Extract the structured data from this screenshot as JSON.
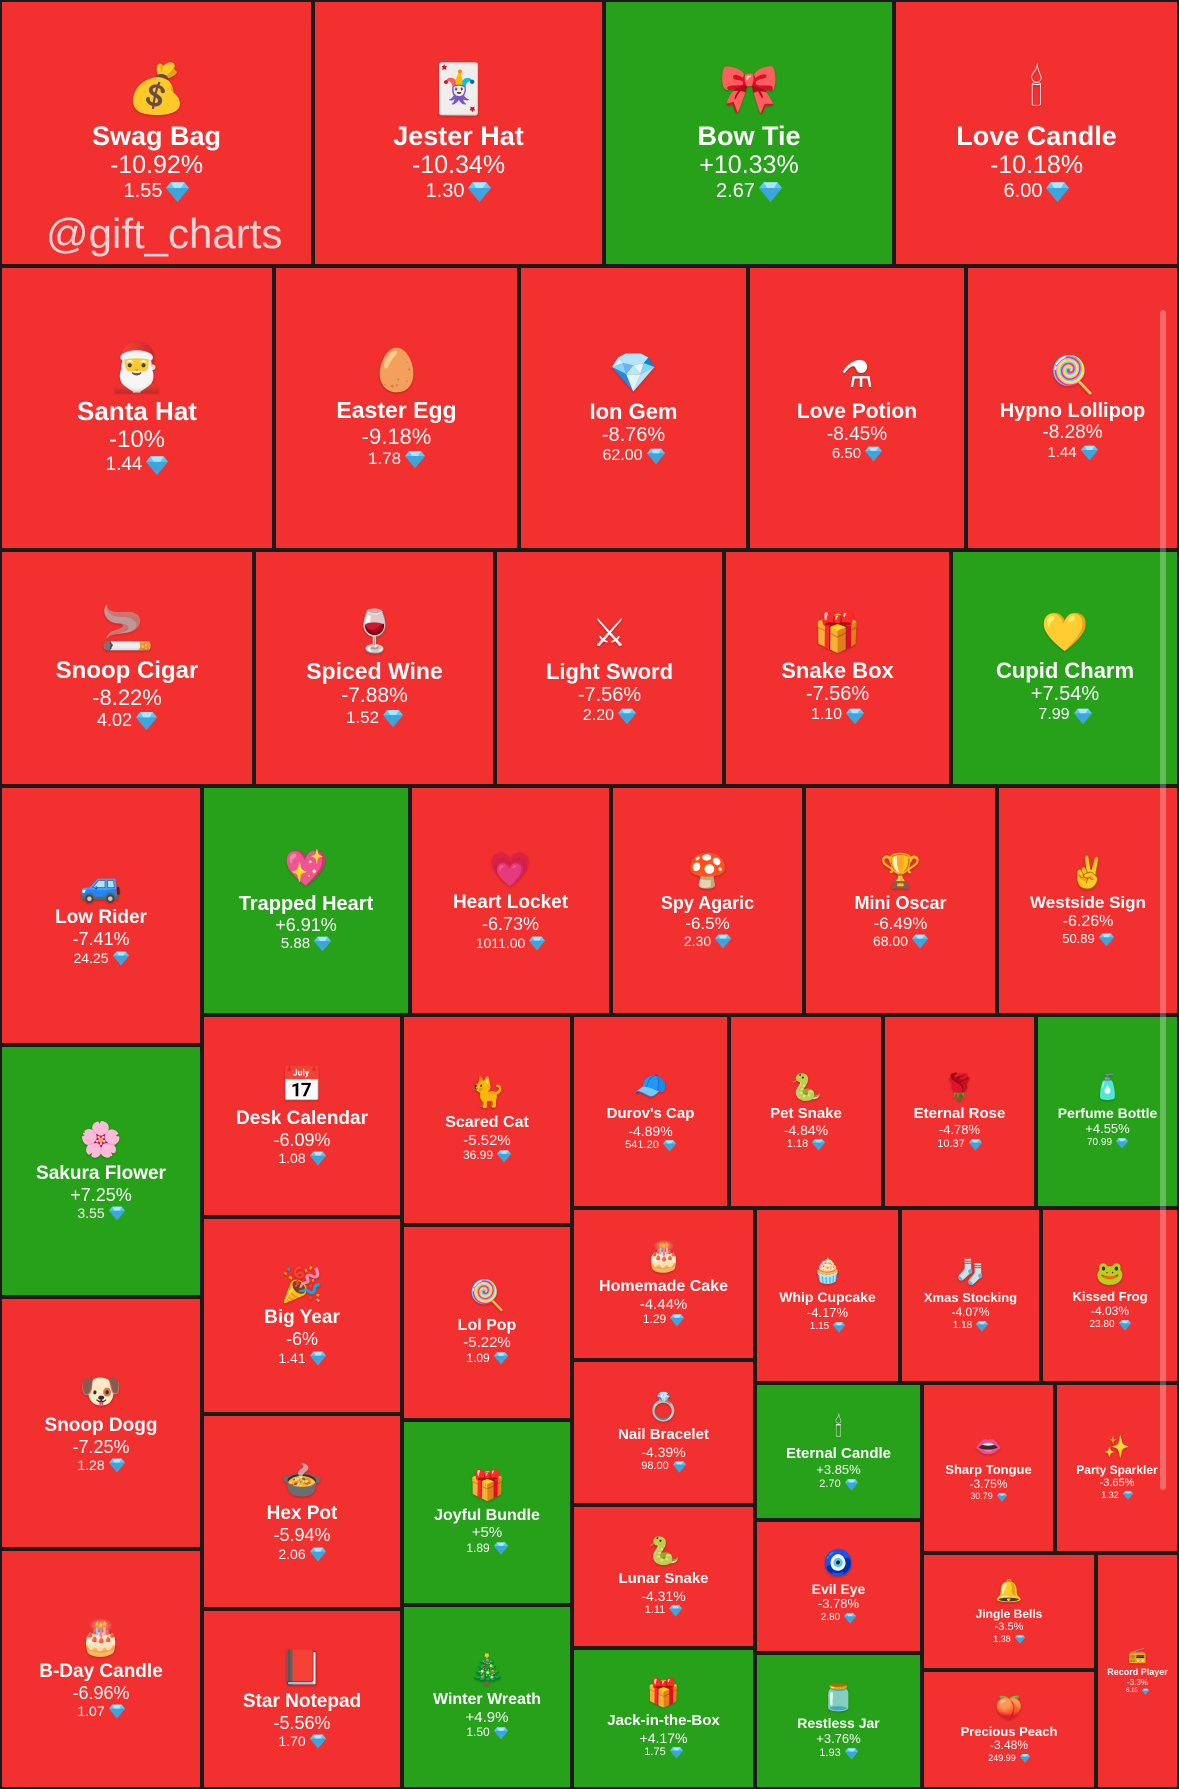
{
  "watermark": "@gift_charts",
  "colors": {
    "down": "#f2302f",
    "up": "#27a11a",
    "border": "#1a1a1a",
    "gem": "#5ec8f2"
  },
  "chart_data": {
    "type": "treemap",
    "value_unit_icon": "diamond-gem-icon",
    "items": [
      {
        "name": "Swag Bag",
        "change": "-10.92%",
        "price": "1.55",
        "trend": "down",
        "icon": "💰"
      },
      {
        "name": "Jester Hat",
        "change": "-10.34%",
        "price": "1.30",
        "trend": "down",
        "icon": "🃏"
      },
      {
        "name": "Bow Tie",
        "change": "+10.33%",
        "price": "2.67",
        "trend": "up",
        "icon": "🎀"
      },
      {
        "name": "Love Candle",
        "change": "-10.18%",
        "price": "6.00",
        "trend": "down",
        "icon": "🕯"
      },
      {
        "name": "Santa Hat",
        "change": "-10%",
        "price": "1.44",
        "trend": "down",
        "icon": "🎅"
      },
      {
        "name": "Easter Egg",
        "change": "-9.18%",
        "price": "1.78",
        "trend": "down",
        "icon": "🥚"
      },
      {
        "name": "Ion Gem",
        "change": "-8.76%",
        "price": "62.00",
        "trend": "down",
        "icon": "💎"
      },
      {
        "name": "Love Potion",
        "change": "-8.45%",
        "price": "6.50",
        "trend": "down",
        "icon": "⚗"
      },
      {
        "name": "Hypno Lollipop",
        "change": "-8.28%",
        "price": "1.44",
        "trend": "down",
        "icon": "🍭"
      },
      {
        "name": "Snoop Cigar",
        "change": "-8.22%",
        "price": "4.02",
        "trend": "down",
        "icon": "🚬"
      },
      {
        "name": "Spiced Wine",
        "change": "-7.88%",
        "price": "1.52",
        "trend": "down",
        "icon": "🍷"
      },
      {
        "name": "Light Sword",
        "change": "-7.56%",
        "price": "2.20",
        "trend": "down",
        "icon": "⚔"
      },
      {
        "name": "Snake Box",
        "change": "-7.56%",
        "price": "1.10",
        "trend": "down",
        "icon": "🎁"
      },
      {
        "name": "Cupid Charm",
        "change": "+7.54%",
        "price": "7.99",
        "trend": "up",
        "icon": "💛"
      },
      {
        "name": "Low Rider",
        "change": "-7.41%",
        "price": "24.25",
        "trend": "down",
        "icon": "🚙"
      },
      {
        "name": "Trapped Heart",
        "change": "+6.91%",
        "price": "5.88",
        "trend": "up",
        "icon": "💖"
      },
      {
        "name": "Heart Locket",
        "change": "-6.73%",
        "price": "1011.00",
        "trend": "down",
        "icon": "💗"
      },
      {
        "name": "Spy Agaric",
        "change": "-6.5%",
        "price": "2.30",
        "trend": "down",
        "icon": "🍄"
      },
      {
        "name": "Mini Oscar",
        "change": "-6.49%",
        "price": "68.00",
        "trend": "down",
        "icon": "🏆"
      },
      {
        "name": "Westside Sign",
        "change": "-6.26%",
        "price": "50.89",
        "trend": "down",
        "icon": "✌"
      },
      {
        "name": "Sakura Flower",
        "change": "+7.25%",
        "price": "3.55",
        "trend": "up",
        "icon": "🌸"
      },
      {
        "name": "Desk Calendar",
        "change": "-6.09%",
        "price": "1.08",
        "trend": "down",
        "icon": "📅"
      },
      {
        "name": "Scared Cat",
        "change": "-5.52%",
        "price": "36.99",
        "trend": "down",
        "icon": "🐈"
      },
      {
        "name": "Durov's Cap",
        "change": "-4.89%",
        "price": "541.20",
        "trend": "down",
        "icon": "🧢"
      },
      {
        "name": "Pet Snake",
        "change": "-4.84%",
        "price": "1.18",
        "trend": "down",
        "icon": "🐍"
      },
      {
        "name": "Eternal Rose",
        "change": "-4.78%",
        "price": "10.37",
        "trend": "down",
        "icon": "🌹"
      },
      {
        "name": "Perfume Bottle",
        "change": "+4.55%",
        "price": "70.99",
        "trend": "up",
        "icon": "🧴"
      },
      {
        "name": "Homemade Cake",
        "change": "-4.44%",
        "price": "1.29",
        "trend": "down",
        "icon": "🎂"
      },
      {
        "name": "Whip Cupcake",
        "change": "-4.17%",
        "price": "1.15",
        "trend": "down",
        "icon": "🧁"
      },
      {
        "name": "Xmas Stocking",
        "change": "-4.07%",
        "price": "1.18",
        "trend": "down",
        "icon": "🧦"
      },
      {
        "name": "Kissed Frog",
        "change": "-4.03%",
        "price": "23.80",
        "trend": "down",
        "icon": "🐸"
      },
      {
        "name": "Big Year",
        "change": "-6%",
        "price": "1.41",
        "trend": "down",
        "icon": "🎉"
      },
      {
        "name": "Lol Pop",
        "change": "-5.22%",
        "price": "1.09",
        "trend": "down",
        "icon": "🍭"
      },
      {
        "name": "Snoop Dogg",
        "change": "-7.25%",
        "price": "1.28",
        "trend": "down",
        "icon": "🐶"
      },
      {
        "name": "Nail Bracelet",
        "change": "-4.39%",
        "price": "98.00",
        "trend": "down",
        "icon": "💍"
      },
      {
        "name": "Eternal Candle",
        "change": "+3.85%",
        "price": "2.70",
        "trend": "up",
        "icon": "🕯"
      },
      {
        "name": "Sharp Tongue",
        "change": "-3.75%",
        "price": "30.79",
        "trend": "down",
        "icon": "👄"
      },
      {
        "name": "Party Sparkler",
        "change": "-3.65%",
        "price": "1.32",
        "trend": "down",
        "icon": "✨"
      },
      {
        "name": "Hex Pot",
        "change": "-5.94%",
        "price": "2.06",
        "trend": "down",
        "icon": "🍲"
      },
      {
        "name": "Joyful Bundle",
        "change": "+5%",
        "price": "1.89",
        "trend": "up",
        "icon": "🎁"
      },
      {
        "name": "Lunar Snake",
        "change": "-4.31%",
        "price": "1.11",
        "trend": "down",
        "icon": "🐍"
      },
      {
        "name": "Evil Eye",
        "change": "-3.78%",
        "price": "2.80",
        "trend": "down",
        "icon": "🧿"
      },
      {
        "name": "Jingle Bells",
        "change": "-3.5%",
        "price": "1.38",
        "trend": "down",
        "icon": "🔔"
      },
      {
        "name": "Record Player",
        "change": "-3.3%",
        "price": "6.15",
        "trend": "down",
        "icon": "📻"
      },
      {
        "name": "B-Day Candle",
        "change": "-6.96%",
        "price": "1.07",
        "trend": "down",
        "icon": "🎂"
      },
      {
        "name": "Star Notepad",
        "change": "-5.56%",
        "price": "1.70",
        "trend": "down",
        "icon": "📕"
      },
      {
        "name": "Winter Wreath",
        "change": "+4.9%",
        "price": "1.50",
        "trend": "up",
        "icon": "🎄"
      },
      {
        "name": "Jack-in-the-Box",
        "change": "+4.17%",
        "price": "1.75",
        "trend": "up",
        "icon": "🎁"
      },
      {
        "name": "Restless Jar",
        "change": "+3.76%",
        "price": "1.93",
        "trend": "up",
        "icon": "🫙"
      },
      {
        "name": "Precious Peach",
        "change": "-3.48%",
        "price": "249.99",
        "trend": "down",
        "icon": "🍑"
      }
    ]
  }
}
